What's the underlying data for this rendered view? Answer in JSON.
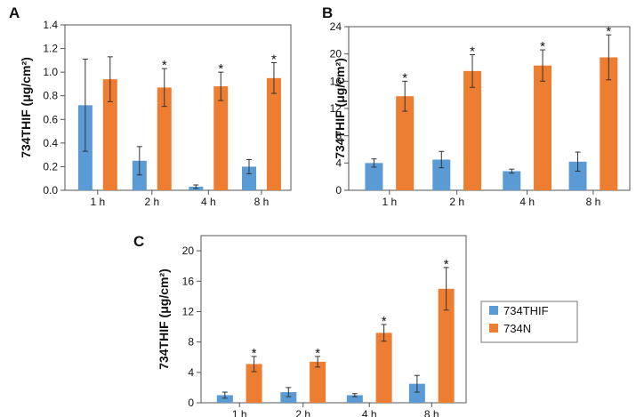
{
  "colors": {
    "s1": "#5b9bd5",
    "s2": "#ed7d31",
    "axis": "#555555",
    "err": "#333333"
  },
  "legend": {
    "items": [
      {
        "label": "734THIF",
        "color": "#5b9bd5"
      },
      {
        "label": "734N",
        "color": "#ed7d31"
      }
    ]
  },
  "chart_data": [
    {
      "type": "bar",
      "panel": "A",
      "title": "",
      "ylabel": "734THIF (μg/cm²)",
      "xlabel": "",
      "categories": [
        "1 h",
        "2 h",
        "4 h",
        "8 h"
      ],
      "ylim": [
        0,
        1.4
      ],
      "yticks": [
        0.0,
        0.2,
        0.4,
        0.6,
        0.8,
        1.0,
        1.2,
        1.4
      ],
      "ytick_labels": [
        "0.0",
        "0.2",
        "0.4",
        "0.6",
        "0.8",
        "1.0",
        "1.2",
        "1.4"
      ],
      "series": [
        {
          "name": "734THIF",
          "values": [
            0.72,
            0.25,
            0.03,
            0.2
          ],
          "errors": [
            0.39,
            0.12,
            0.015,
            0.06
          ]
        },
        {
          "name": "734N",
          "values": [
            0.94,
            0.87,
            0.88,
            0.95
          ],
          "errors": [
            0.19,
            0.16,
            0.12,
            0.13
          ]
        }
      ],
      "significance": [
        "",
        "*",
        "*",
        "*"
      ]
    },
    {
      "type": "bar",
      "panel": "B",
      "title": "",
      "ylabel": "734THIF (μg/cm²)",
      "xlabel": "",
      "categories": [
        "1 h",
        "2 h",
        "4 h",
        "8 h"
      ],
      "ylim": [
        0,
        24
      ],
      "yticks": [
        0,
        4,
        8,
        12,
        16,
        20,
        24
      ],
      "ytick_labels": [
        "0",
        "4",
        "8",
        "12",
        "16",
        "20",
        "24"
      ],
      "series": [
        {
          "name": "734THIF",
          "values": [
            4.0,
            4.5,
            2.8,
            4.2
          ],
          "errors": [
            0.6,
            1.2,
            0.3,
            1.4
          ]
        },
        {
          "name": "734N",
          "values": [
            13.8,
            17.5,
            18.3,
            19.5
          ],
          "errors": [
            2.2,
            2.4,
            2.3,
            3.3
          ]
        }
      ],
      "significance": [
        "*",
        "*",
        "*",
        "*"
      ]
    },
    {
      "type": "bar",
      "panel": "C",
      "title": "",
      "ylabel": "734THIF (μg/cm²)",
      "xlabel": "",
      "categories": [
        "1 h",
        "2 h",
        "4 h",
        "8 h"
      ],
      "ylim": [
        0,
        22
      ],
      "yticks": [
        0,
        4,
        8,
        12,
        16,
        20
      ],
      "ytick_labels": [
        "0",
        "4",
        "8",
        "12",
        "16",
        "20"
      ],
      "series": [
        {
          "name": "734THIF",
          "values": [
            1.0,
            1.4,
            1.0,
            2.5
          ],
          "errors": [
            0.4,
            0.6,
            0.2,
            1.1
          ]
        },
        {
          "name": "734N",
          "values": [
            5.1,
            5.4,
            9.2,
            15.0
          ],
          "errors": [
            1.0,
            0.7,
            1.1,
            2.8
          ]
        }
      ],
      "significance": [
        "*",
        "*",
        "*",
        "*"
      ]
    }
  ]
}
